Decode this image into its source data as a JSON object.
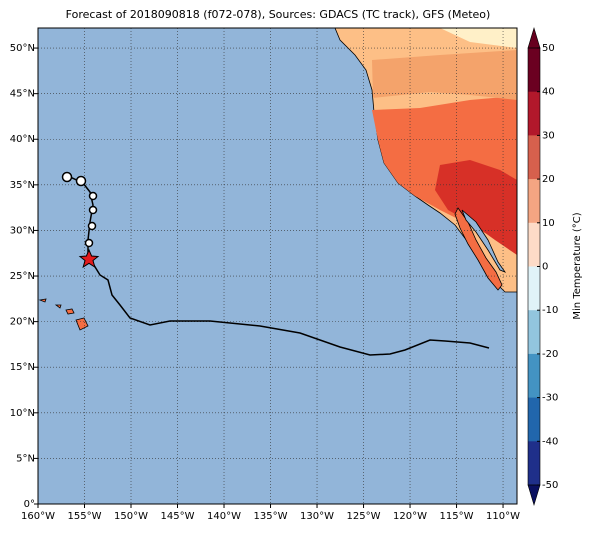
{
  "title": "Forecast of 2018090818 (f072-078), Sources: GDACS (TC track), GFS (Meteo)",
  "x_axis": {
    "lim": [
      -160,
      -108.5
    ],
    "ticks": [
      {
        "value": -160,
        "label": "160°W"
      },
      {
        "value": -155,
        "label": "155°W"
      },
      {
        "value": -150,
        "label": "150°W"
      },
      {
        "value": -145,
        "label": "145°W"
      },
      {
        "value": -140,
        "label": "140°W"
      },
      {
        "value": -135,
        "label": "135°W"
      },
      {
        "value": -130,
        "label": "130°W"
      },
      {
        "value": -125,
        "label": "125°W"
      },
      {
        "value": -120,
        "label": "120°W"
      },
      {
        "value": -115,
        "label": "115°W"
      },
      {
        "value": -110,
        "label": "110°W"
      }
    ]
  },
  "y_axis": {
    "lim": [
      0,
      52.2
    ],
    "ticks": [
      {
        "value": 0,
        "label": "0°"
      },
      {
        "value": 5,
        "label": "5°N"
      },
      {
        "value": 10,
        "label": "10°N"
      },
      {
        "value": 15,
        "label": "15°N"
      },
      {
        "value": 20,
        "label": "20°N"
      },
      {
        "value": 25,
        "label": "25°N"
      },
      {
        "value": 30,
        "label": "30°N"
      },
      {
        "value": 35,
        "label": "35°N"
      },
      {
        "value": 40,
        "label": "40°N"
      },
      {
        "value": 45,
        "label": "45°N"
      },
      {
        "value": 50,
        "label": "50°N"
      }
    ]
  },
  "colorbar": {
    "label": "Min Temperature (°C)",
    "lim": [
      -50,
      50
    ],
    "ticks": [
      50,
      40,
      30,
      20,
      10,
      0,
      -10,
      -20,
      -30,
      -40,
      -50
    ],
    "colors": [
      "#6b0021",
      "#b2182b",
      "#d6604d",
      "#f4a582",
      "#fddbc7",
      "#e0f3f8",
      "#92c5de",
      "#4393c3",
      "#2166ac",
      "#1f2f8a"
    ],
    "over_color": "#67001f",
    "under_color": "#0a1060"
  }
}
